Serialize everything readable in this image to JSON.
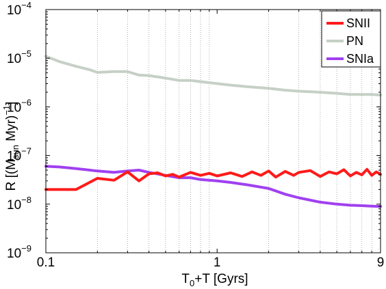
{
  "chart_data": {
    "type": "line",
    "xscale": "log",
    "yscale": "log",
    "xlim": [
      0.1,
      9
    ],
    "ylim": [
      1e-09,
      0.0001
    ],
    "grid": "vertical-dotted",
    "legend_position": "top-right",
    "xlabel": {
      "main": "T",
      "sub": "0",
      "rest": "+T [Gyrs]"
    },
    "ylabel": {
      "pre": "R [(M",
      "sub": "sun",
      "mid": " Myr)",
      "sup": "−1",
      "post": "]"
    },
    "x_ticks": [
      {
        "value": 0.1,
        "label": "0.1"
      },
      {
        "value": 1,
        "label": "1"
      },
      {
        "value": 9,
        "label": "9"
      }
    ],
    "y_ticks": [
      {
        "value": 1e-09,
        "base": "10",
        "exp": "−9"
      },
      {
        "value": 1e-08,
        "base": "10",
        "exp": "−8"
      },
      {
        "value": 1e-07,
        "base": "10",
        "exp": "−7"
      },
      {
        "value": 1e-06,
        "base": "10",
        "exp": "−6"
      },
      {
        "value": 1e-05,
        "base": "10",
        "exp": "−5"
      },
      {
        "value": 0.0001,
        "base": "10",
        "exp": "−4"
      }
    ],
    "grid_x": [
      0.2,
      0.3,
      0.4,
      0.5,
      0.6,
      0.7,
      0.8,
      0.9,
      2,
      3,
      4,
      5,
      6,
      7,
      8
    ],
    "series": [
      {
        "name": "SNII",
        "color": "#ff1a1a",
        "x": [
          0.1,
          0.13,
          0.15,
          0.2,
          0.25,
          0.3,
          0.35,
          0.4,
          0.45,
          0.5,
          0.55,
          0.6,
          0.7,
          0.8,
          0.9,
          1.0,
          1.2,
          1.4,
          1.6,
          1.8,
          2.0,
          2.2,
          2.5,
          2.8,
          3.0,
          3.5,
          4.0,
          4.5,
          5.0,
          5.5,
          6.0,
          6.5,
          7.0,
          7.5,
          8.0,
          8.5,
          9.0
        ],
        "y": [
          2e-08,
          2e-08,
          2e-08,
          3.4e-08,
          3.1e-08,
          4.6e-08,
          3e-08,
          4.2e-08,
          4.4e-08,
          3.8e-08,
          4.1e-08,
          3.6e-08,
          4.5e-08,
          3.9e-08,
          4.3e-08,
          3.8e-08,
          4.4e-08,
          3.7e-08,
          4.6e-08,
          3.9e-08,
          4.8e-08,
          3.6e-08,
          4.7e-08,
          3.9e-08,
          4.5e-08,
          4.9e-08,
          3.7e-08,
          4.6e-08,
          4.2e-08,
          5.1e-08,
          3.8e-08,
          4.5e-08,
          4e-08,
          5.2e-08,
          3.9e-08,
          4.6e-08,
          4.1e-08
        ]
      },
      {
        "name": "PN",
        "color": "#c6d0c6",
        "x": [
          0.1,
          0.12,
          0.15,
          0.18,
          0.2,
          0.25,
          0.3,
          0.35,
          0.4,
          0.5,
          0.6,
          0.7,
          0.8,
          1.0,
          1.2,
          1.5,
          2.0,
          2.5,
          3.0,
          4.0,
          5.0,
          6.0,
          7.0,
          8.0,
          9.0
        ],
        "y": [
          1.1e-05,
          8.5e-06,
          6.8e-06,
          5.8e-06,
          5.1e-06,
          5.3e-06,
          5.3e-06,
          4.5e-06,
          4.4e-06,
          3.9e-06,
          3.5e-06,
          3.5e-06,
          3.3e-06,
          3e-06,
          2.8e-06,
          2.6e-06,
          2.4e-06,
          2.2e-06,
          2.1e-06,
          2e-06,
          1.9e-06,
          1.8e-06,
          1.8e-06,
          1.8e-06,
          1.75e-06
        ]
      },
      {
        "name": "SNIa",
        "color": "#a040f0",
        "x": [
          0.1,
          0.12,
          0.15,
          0.2,
          0.25,
          0.3,
          0.35,
          0.4,
          0.5,
          0.6,
          0.7,
          0.8,
          1.0,
          1.2,
          1.5,
          2.0,
          2.5,
          3.0,
          4.0,
          5.0,
          6.0,
          7.0,
          8.0,
          9.0
        ],
        "y": [
          6e-08,
          5.8e-08,
          5.4e-08,
          4.8e-08,
          4.5e-08,
          4.8e-08,
          5e-08,
          4.5e-08,
          3.9e-08,
          3.5e-08,
          3.5e-08,
          3.2e-08,
          3e-08,
          2.8e-08,
          2.5e-08,
          2.1e-08,
          1.6e-08,
          1.35e-08,
          1.1e-08,
          1e-08,
          9.5e-09,
          9.3e-09,
          9.1e-09,
          9e-09
        ]
      }
    ]
  }
}
